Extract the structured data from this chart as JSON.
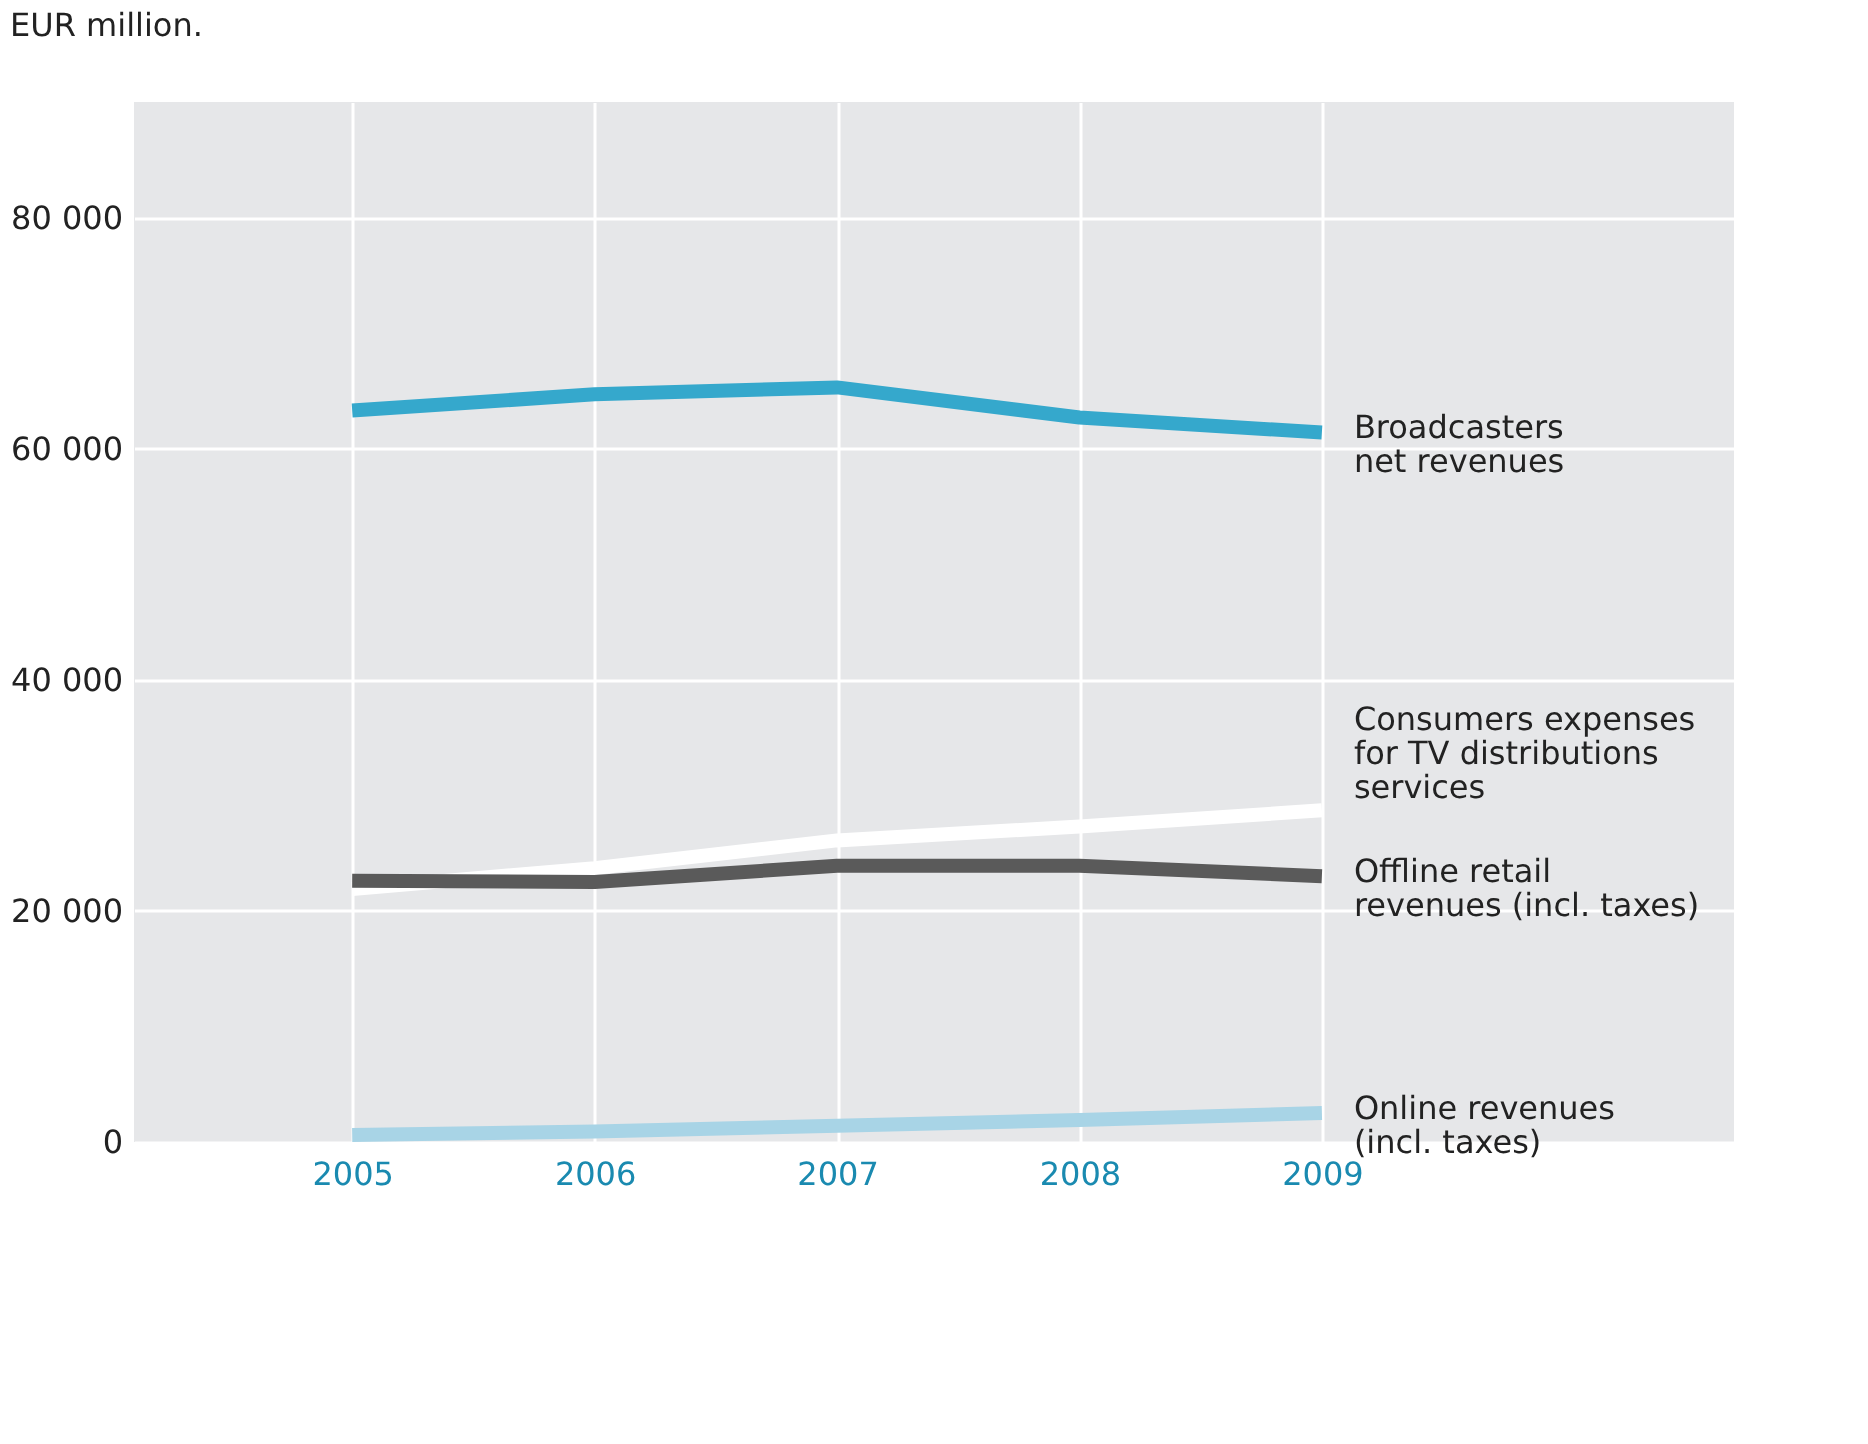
{
  "chart_data": {
    "type": "line",
    "title": "EUR million.",
    "x": [
      2005,
      2006,
      2007,
      2008,
      2009
    ],
    "series": [
      {
        "name": "Broadcasters\nnet revenues",
        "color": "#35a8cc",
        "values": [
          63300,
          64700,
          65300,
          62700,
          61400
        ]
      },
      {
        "name": "Consumers expenses\nfor TV distributions\nservices",
        "color": "#ffffff",
        "values": [
          21900,
          23700,
          26100,
          27300,
          28700
        ]
      },
      {
        "name": "Offline retail\nrevenues (incl. taxes)",
        "color": "#5a5a5a",
        "values": [
          22600,
          22500,
          23900,
          23900,
          23000
        ]
      },
      {
        "name": "Online revenues\n(incl. taxes)",
        "color": "#a8d4e6",
        "values": [
          600,
          900,
          1400,
          1900,
          2500
        ]
      }
    ],
    "xlim": [
      2004.1,
      2010.7
    ],
    "xticks": [
      2005,
      2006,
      2007,
      2008,
      2009
    ],
    "ylim": [
      0,
      90000
    ],
    "yticks": [
      0,
      {
        "value": 20000,
        "label": "20 000"
      },
      {
        "value": 40000,
        "label": "40 000"
      },
      {
        "value": 60000,
        "label": "60 000"
      },
      {
        "value": 80000,
        "label": "80 000"
      }
    ],
    "grid": true,
    "legend": false,
    "marker": "none",
    "line_style": "solid"
  }
}
